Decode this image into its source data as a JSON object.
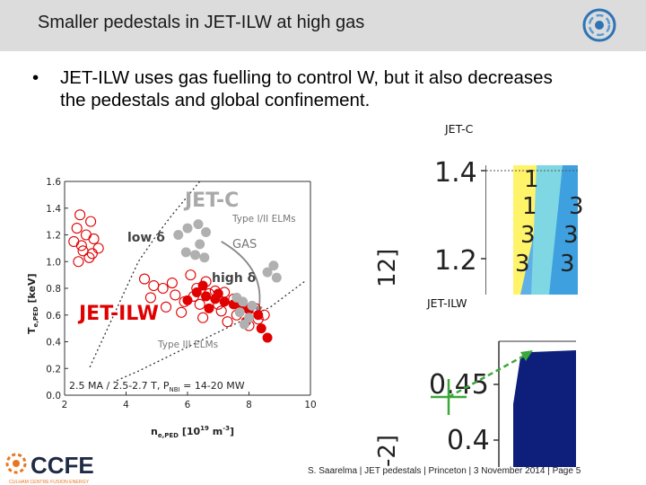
{
  "slide": {
    "title": "Smaller pedestals in JET-ILW at high gas",
    "bullet": "JET-ILW uses gas fuelling to control W, but it also decreases the pedestals and global confinement.",
    "bullet_symbol": "•",
    "footer": "S. Saarelma | JET pedestals | Princeton | 3 November 2014 | Page 5",
    "logo": {
      "name": "CCFE",
      "subtitle": "CULHAM CENTRE FUSION ENERGY"
    }
  },
  "chart_data": {
    "type": "scatter",
    "xlabel": "n e,PED [10 19 m -3 ]",
    "ylabel": "T e,PED [keV]",
    "xlim": [
      2,
      10
    ],
    "ylim": [
      0.0,
      1.6
    ],
    "x_ticks": [
      "2",
      "4",
      "6",
      "8",
      "10"
    ],
    "y_ticks": [
      "0.0",
      "0.2",
      "0.4",
      "0.6",
      "0.8",
      "1.0",
      "1.2",
      "1.4",
      "1.6"
    ],
    "annotations": {
      "jetc": "JET-C",
      "jetilw": "JET-ILW",
      "type12": "Type I/II ELMs",
      "type3": "Type III ELMs",
      "gas": "GAS",
      "low_delta": "low δ",
      "high_delta": "high δ",
      "conditions": "2.5 MA / 2.5-2.7 T, P",
      "conditions_sub": "NBI",
      "conditions_rest": " = 14-20 MW"
    },
    "colors": {
      "jetc": "#b0b0b0",
      "jetilw": "#e00000",
      "arrow": "#888888"
    },
    "series": [
      {
        "marker": "open-circle",
        "color": "#e00000",
        "points": [
          [
            2.5,
            1.35
          ],
          [
            2.85,
            1.3
          ],
          [
            2.4,
            1.25
          ],
          [
            2.7,
            1.2
          ],
          [
            2.3,
            1.15
          ],
          [
            2.55,
            1.12
          ],
          [
            2.95,
            1.17
          ],
          [
            2.6,
            1.08
          ],
          [
            2.8,
            1.03
          ],
          [
            3.1,
            1.1
          ],
          [
            2.45,
            1.0
          ],
          [
            2.9,
            1.06
          ],
          [
            6.1,
            0.9
          ],
          [
            6.6,
            0.85
          ],
          [
            6.3,
            0.8
          ],
          [
            6.7,
            0.76
          ],
          [
            6.9,
            0.78
          ],
          [
            7.2,
            0.77
          ],
          [
            7.5,
            0.72
          ],
          [
            6.4,
            0.68
          ],
          [
            7.8,
            0.66
          ],
          [
            8.2,
            0.65
          ],
          [
            7.1,
            0.63
          ],
          [
            8.5,
            0.6
          ],
          [
            5.2,
            0.8
          ],
          [
            5.6,
            0.75
          ],
          [
            5.9,
            0.7
          ],
          [
            5.5,
            0.84
          ],
          [
            4.6,
            0.87
          ],
          [
            4.9,
            0.82
          ],
          [
            5.8,
            0.62
          ],
          [
            6.5,
            0.58
          ],
          [
            7.3,
            0.55
          ],
          [
            8.0,
            0.52
          ],
          [
            8.3,
            0.57
          ],
          [
            5.3,
            0.66
          ],
          [
            4.8,
            0.73
          ],
          [
            6.2,
            0.74
          ],
          [
            7.0,
            0.68
          ],
          [
            7.6,
            0.6
          ]
        ]
      },
      {
        "marker": "filled-circle",
        "color": "#e00000",
        "points": [
          [
            6.3,
            0.77
          ],
          [
            6.6,
            0.74
          ],
          [
            6.9,
            0.72
          ],
          [
            7.2,
            0.7
          ],
          [
            7.5,
            0.68
          ],
          [
            7.7,
            0.66
          ],
          [
            8.0,
            0.64
          ],
          [
            8.3,
            0.6
          ],
          [
            6.0,
            0.71
          ],
          [
            6.7,
            0.65
          ],
          [
            7.9,
            0.55
          ],
          [
            8.4,
            0.5
          ],
          [
            8.6,
            0.43
          ],
          [
            6.5,
            0.82
          ],
          [
            7.0,
            0.76
          ]
        ]
      },
      {
        "marker": "filled-circle",
        "color": "#b0b0b0",
        "points": [
          [
            5.7,
            1.2
          ],
          [
            6.0,
            1.25
          ],
          [
            6.35,
            1.28
          ],
          [
            6.6,
            1.22
          ],
          [
            6.4,
            1.13
          ],
          [
            5.95,
            1.07
          ],
          [
            6.25,
            1.05
          ],
          [
            6.55,
            1.03
          ],
          [
            8.6,
            0.92
          ],
          [
            8.8,
            0.97
          ],
          [
            8.9,
            0.88
          ],
          [
            7.6,
            0.73
          ],
          [
            7.8,
            0.7
          ],
          [
            8.1,
            0.67
          ],
          [
            7.7,
            0.62
          ],
          [
            8.0,
            0.58
          ],
          [
            7.85,
            0.53
          ]
        ]
      }
    ],
    "curves": [
      {
        "style": "dotted",
        "points": [
          [
            6.4,
            1.6
          ],
          [
            5.5,
            1.35
          ],
          [
            5.0,
            1.2
          ],
          [
            4.4,
            1.0
          ],
          [
            4.0,
            0.8
          ],
          [
            3.6,
            0.6
          ],
          [
            3.2,
            0.4
          ],
          [
            2.8,
            0.2
          ]
        ]
      },
      {
        "style": "dotted",
        "points": [
          [
            9.8,
            0.85
          ],
          [
            8.7,
            0.66
          ],
          [
            7.7,
            0.55
          ],
          [
            6.8,
            0.45
          ],
          [
            6.0,
            0.36
          ],
          [
            5.2,
            0.27
          ],
          [
            4.4,
            0.18
          ],
          [
            3.6,
            0.1
          ]
        ]
      }
    ]
  },
  "right_panels": {
    "top_label": "JET-C",
    "bottom_label": "JET-ILW",
    "top_y_ticks": [
      "1.4",
      "1.2"
    ],
    "top_axis_label": "12]",
    "top_contours": [
      "1",
      "1",
      "3",
      "3",
      "3",
      "3",
      "3"
    ],
    "bottom_y_ticks": [
      "0.45",
      "0.4"
    ],
    "bottom_axis_label": "-2]"
  }
}
